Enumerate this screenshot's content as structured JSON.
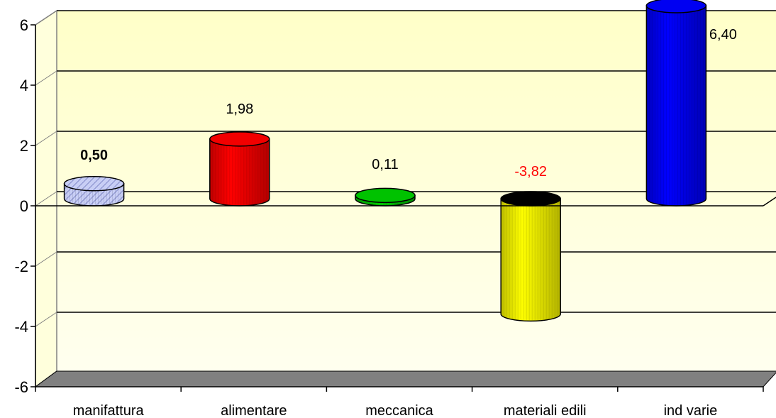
{
  "chart_data": {
    "type": "bar",
    "title": "",
    "xlabel": "",
    "ylabel": "",
    "categories": [
      "manifattura",
      "alimentare",
      "meccanica",
      "materiali edili",
      "ind varie"
    ],
    "values": [
      0.5,
      1.98,
      0.11,
      -3.82,
      6.4
    ],
    "value_labels": [
      "0,50",
      "1,98",
      "0,11",
      "-3,82",
      "6,40"
    ],
    "ylim": [
      -6,
      6
    ],
    "y_ticks": [
      6,
      4,
      2,
      0,
      -2,
      -4,
      -6
    ],
    "y_tick_labels": [
      "6",
      "4",
      "2",
      "0",
      "-2",
      "-4",
      "-6"
    ],
    "grid": true,
    "bar_colors": [
      "#aab4ee",
      "#ff0000",
      "#00cc00",
      "#ffff00",
      "#0000ff"
    ],
    "label_colors": [
      "#000000",
      "#000000",
      "#000000",
      "#ff0000",
      "#000000"
    ],
    "label_bold": [
      true,
      false,
      false,
      false,
      false
    ],
    "plot_background": "#ffffe6",
    "floor_color": "#808080"
  }
}
